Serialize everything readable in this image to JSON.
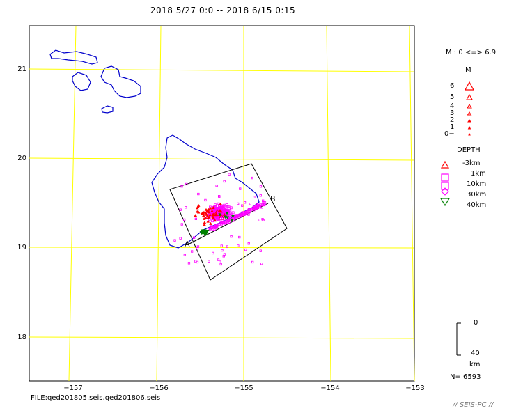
{
  "title": "2018 5/27 0:0 -- 2018 6/15 0:15",
  "file_label": "FILE:qed201805.seis,qed201806.seis",
  "credit": "// SEIS-PC //",
  "map": {
    "lat_ticks": [
      "21",
      "20",
      "19",
      "18"
    ],
    "lon_ticks": [
      "−157",
      "−156",
      "−155",
      "−154",
      "−153"
    ],
    "profile_start": "A",
    "profile_end": "B",
    "colors": {
      "coast": "#0000cc",
      "grid": "#ffff00",
      "shallow": "#ff0000",
      "mid": "#ff00ff",
      "deep": "#008000"
    }
  },
  "legend": {
    "magnitude_range": "M : 0 <=> 6.9",
    "magnitude_title": "M",
    "magnitude_levels": [
      "6",
      "5",
      "4",
      "3",
      "2",
      "1",
      "0−"
    ],
    "depth_title": "DEPTH",
    "depth_levels": [
      "-3km",
      "1km",
      "10km",
      "30km",
      "40km"
    ],
    "depth_scale_top": "0",
    "depth_scale_bottom": "40",
    "depth_scale_unit": "km",
    "count": "N= 6593"
  }
}
